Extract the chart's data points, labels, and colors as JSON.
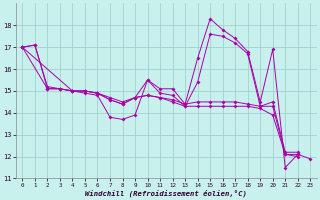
{
  "background_color": "#c8f0ec",
  "line_color": "#aa00aa",
  "grid_color": "#99cccc",
  "xlabel": "Windchill (Refroidissement éolien,°C)",
  "xlim": [
    -0.5,
    23.5
  ],
  "ylim": [
    11,
    19
  ],
  "yticks": [
    11,
    12,
    13,
    14,
    15,
    16,
    17,
    18
  ],
  "xticks": [
    0,
    1,
    2,
    3,
    4,
    5,
    6,
    7,
    8,
    9,
    10,
    11,
    12,
    13,
    14,
    15,
    16,
    17,
    18,
    19,
    20,
    21,
    22,
    23
  ],
  "lines": [
    {
      "x": [
        0,
        1,
        2,
        3,
        4,
        5,
        6,
        7,
        8,
        9,
        10,
        11,
        12,
        13,
        14,
        15,
        16,
        17,
        18,
        19,
        20,
        21,
        22,
        23
      ],
      "y": [
        17.0,
        17.1,
        15.1,
        15.1,
        15.0,
        14.9,
        14.8,
        13.8,
        13.7,
        13.9,
        15.5,
        15.1,
        15.1,
        14.4,
        16.5,
        18.3,
        17.8,
        17.4,
        16.8,
        14.5,
        16.9,
        11.5,
        12.1,
        11.9
      ]
    },
    {
      "x": [
        0,
        1,
        2,
        3,
        4,
        5,
        6,
        7,
        8,
        9,
        10,
        11,
        12,
        13,
        14,
        15,
        16,
        17,
        18,
        19,
        20,
        21,
        22
      ],
      "y": [
        17.0,
        17.1,
        15.2,
        15.1,
        15.0,
        15.0,
        14.9,
        14.6,
        14.4,
        14.7,
        15.5,
        14.9,
        14.8,
        14.3,
        15.4,
        17.6,
        17.5,
        17.2,
        16.7,
        14.3,
        14.5,
        12.2,
        12.2
      ]
    },
    {
      "x": [
        0,
        2,
        3,
        4,
        5,
        6,
        7,
        8,
        9,
        10,
        11,
        12,
        13,
        14,
        15,
        16,
        17,
        18,
        19,
        20,
        21,
        22
      ],
      "y": [
        17.0,
        15.1,
        15.1,
        15.0,
        15.0,
        14.9,
        14.6,
        14.4,
        14.7,
        14.8,
        14.7,
        14.6,
        14.4,
        14.5,
        14.5,
        14.5,
        14.5,
        14.4,
        14.3,
        14.3,
        12.1,
        12.1
      ]
    },
    {
      "x": [
        0,
        4,
        5,
        6,
        7,
        8,
        9,
        10,
        11,
        12,
        13,
        14,
        15,
        16,
        17,
        18,
        19,
        20,
        21,
        22
      ],
      "y": [
        17.0,
        15.0,
        15.0,
        14.9,
        14.7,
        14.5,
        14.7,
        14.8,
        14.7,
        14.5,
        14.3,
        14.3,
        14.3,
        14.3,
        14.3,
        14.3,
        14.2,
        13.9,
        12.1,
        12.0
      ]
    }
  ]
}
